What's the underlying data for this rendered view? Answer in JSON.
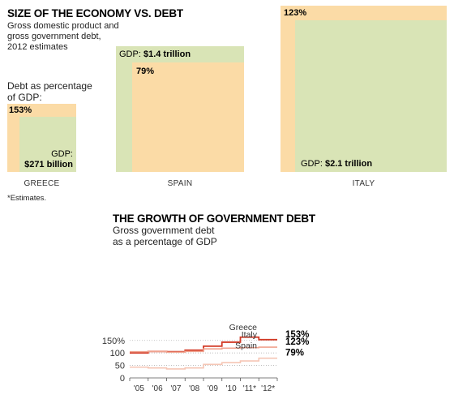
{
  "header": {
    "title": "SIZE OF THE ECONOMY VS. DEBT",
    "subtitle_line1": "Gross domestic product and",
    "subtitle_line2": "gross government debt,",
    "subtitle_line3": "2012 estimates",
    "debt_label_line1": "Debt as percentage",
    "debt_label_line2": "of GDP:",
    "footnote": "*Estimates."
  },
  "colors": {
    "gdp_fill": "#d9e4b6",
    "debt_fill": "#fbdba6",
    "greece_line": "#d23a26",
    "italy_line": "#f0a38f",
    "spain_line": "#f5c6b5",
    "grid": "#b3b3b3"
  },
  "boxes": [
    {
      "country": "GREECE",
      "gdp_label": "GDP:",
      "gdp_value": "$271 billion",
      "debt_pct": "153%"
    },
    {
      "country": "SPAIN",
      "gdp_label": "GDP:",
      "gdp_value": "$1.4 trillion",
      "debt_pct": "79%"
    },
    {
      "country": "ITALY",
      "gdp_label": "GDP:",
      "gdp_value": "$2.1 trillion",
      "debt_pct": "123%"
    }
  ],
  "chart_data": {
    "type": "line",
    "step": true,
    "title": "THE GROWTH OF GOVERNMENT DEBT",
    "subtitle_line1": "Gross government debt",
    "subtitle_line2": "as a percentage of GDP",
    "xlabel": "",
    "ylabel": "",
    "x": [
      "'05",
      "'06",
      "'07",
      "'08",
      "'09",
      "'10",
      "'11*",
      "'12*"
    ],
    "yticks": [
      "0",
      "50",
      "100",
      "150%"
    ],
    "ytick_values": [
      0,
      50,
      100,
      150
    ],
    "ylim": [
      0,
      165
    ],
    "grid": "horizontal dotted",
    "series": [
      {
        "name": "Greece",
        "end_label": "153%",
        "values": [
          100,
          106,
          105,
          111,
          127,
          143,
          163,
          153
        ]
      },
      {
        "name": "Italy",
        "end_label": "123%",
        "values": [
          105,
          106,
          103,
          106,
          116,
          119,
          121,
          123
        ]
      },
      {
        "name": "Spain",
        "end_label": "79%",
        "values": [
          43,
          40,
          36,
          40,
          54,
          61,
          68,
          79
        ]
      }
    ]
  }
}
